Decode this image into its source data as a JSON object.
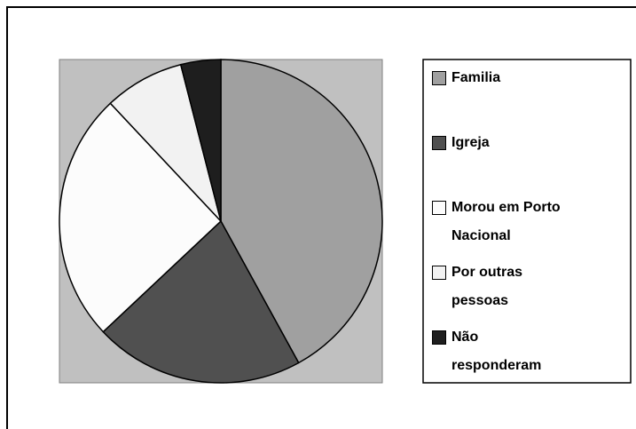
{
  "chart_data": {
    "type": "pie",
    "categories": [
      "Familia",
      "Igreja",
      "Morou em Porto Nacional",
      "Por outras pessoas",
      "Não responderam"
    ],
    "values": [
      42,
      21,
      25,
      8,
      4
    ],
    "colors": [
      "#a0a0a0",
      "#505050",
      "#fcfcfc",
      "#f2f2f2",
      "#1e1e1e"
    ],
    "legend": "right"
  }
}
